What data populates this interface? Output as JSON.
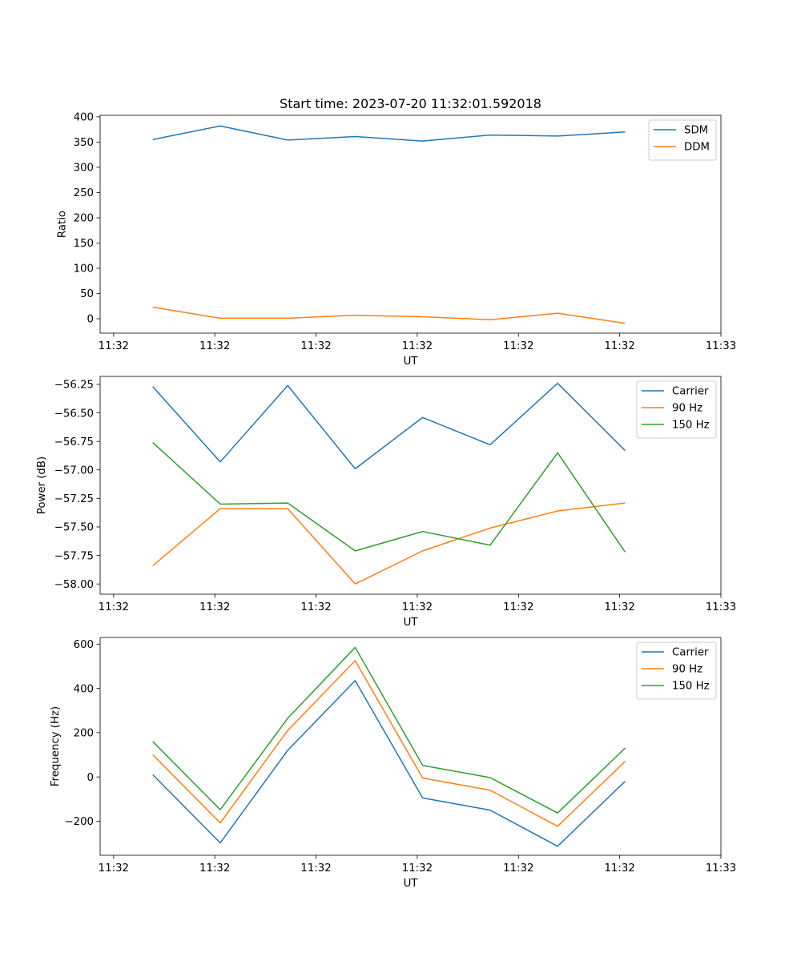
{
  "chart_data": [
    {
      "type": "line",
      "title": "Start time: 2023-07-20 11:32:01.592018",
      "xlabel": "UT",
      "ylabel": "Ratio",
      "x": [
        1,
        2,
        3,
        4,
        5,
        6,
        7,
        8
      ],
      "xlim": [
        0.22,
        9.42
      ],
      "xticks": [
        {
          "value": 0.42,
          "label": "11:32"
        },
        {
          "value": 1.92,
          "label": "11:32"
        },
        {
          "value": 3.42,
          "label": "11:32"
        },
        {
          "value": 4.92,
          "label": "11:32"
        },
        {
          "value": 6.42,
          "label": "11:32"
        },
        {
          "value": 7.92,
          "label": "11:32"
        },
        {
          "value": 9.42,
          "label": "11:33"
        }
      ],
      "ylim": [
        -28.5,
        403
      ],
      "yticks": [
        {
          "value": 0,
          "label": "0"
        },
        {
          "value": 50,
          "label": "50"
        },
        {
          "value": 100,
          "label": "100"
        },
        {
          "value": 150,
          "label": "150"
        },
        {
          "value": 200,
          "label": "200"
        },
        {
          "value": 250,
          "label": "250"
        },
        {
          "value": 300,
          "label": "300"
        },
        {
          "value": 350,
          "label": "350"
        },
        {
          "value": 400,
          "label": "400"
        }
      ],
      "legend_position": "top-right",
      "series": [
        {
          "name": "SDM",
          "color": "#1f77b4",
          "values": [
            355,
            382,
            354,
            361,
            352,
            364,
            362,
            370
          ]
        },
        {
          "name": "DDM",
          "color": "#ff7f0e",
          "values": [
            23,
            1,
            1,
            7,
            4,
            -2,
            11,
            -9
          ]
        }
      ]
    },
    {
      "type": "line",
      "title": "",
      "xlabel": "UT",
      "ylabel": "Power (dB)",
      "x": [
        1,
        2,
        3,
        4,
        5,
        6,
        7,
        8
      ],
      "xlim": [
        0.22,
        9.42
      ],
      "xticks": [
        {
          "value": 0.42,
          "label": "11:32"
        },
        {
          "value": 1.92,
          "label": "11:32"
        },
        {
          "value": 3.42,
          "label": "11:32"
        },
        {
          "value": 4.92,
          "label": "11:32"
        },
        {
          "value": 6.42,
          "label": "11:32"
        },
        {
          "value": 7.92,
          "label": "11:32"
        },
        {
          "value": 9.42,
          "label": "11:33"
        }
      ],
      "ylim": [
        -58.09,
        -56.18
      ],
      "yticks": [
        {
          "value": -58.0,
          "label": "−58.00"
        },
        {
          "value": -57.75,
          "label": "−57.75"
        },
        {
          "value": -57.5,
          "label": "−57.50"
        },
        {
          "value": -57.25,
          "label": "−57.25"
        },
        {
          "value": -57.0,
          "label": "−57.00"
        },
        {
          "value": -56.75,
          "label": "−56.75"
        },
        {
          "value": -56.5,
          "label": "−56.50"
        },
        {
          "value": -56.25,
          "label": "−56.25"
        }
      ],
      "legend_position": "top-right",
      "series": [
        {
          "name": "Carrier",
          "color": "#1f77b4",
          "values": [
            -56.27,
            -56.93,
            -56.26,
            -56.99,
            -56.54,
            -56.78,
            -56.24,
            -56.83
          ]
        },
        {
          "name": "90 Hz",
          "color": "#ff7f0e",
          "values": [
            -57.84,
            -57.34,
            -57.34,
            -58.0,
            -57.71,
            -57.51,
            -57.36,
            -57.29
          ]
        },
        {
          "name": "150 Hz",
          "color": "#2ca02c",
          "values": [
            -56.76,
            -57.3,
            -57.29,
            -57.71,
            -57.54,
            -57.66,
            -56.85,
            -57.72
          ]
        }
      ]
    },
    {
      "type": "line",
      "title": "",
      "xlabel": "UT",
      "ylabel": "Frequency (Hz)",
      "x": [
        1,
        2,
        3,
        4,
        5,
        6,
        7,
        8
      ],
      "xlim": [
        0.22,
        9.42
      ],
      "xticks": [
        {
          "value": 0.42,
          "label": "11:32"
        },
        {
          "value": 1.92,
          "label": "11:32"
        },
        {
          "value": 3.42,
          "label": "11:32"
        },
        {
          "value": 4.92,
          "label": "11:32"
        },
        {
          "value": 6.42,
          "label": "11:32"
        },
        {
          "value": 7.92,
          "label": "11:32"
        },
        {
          "value": 9.42,
          "label": "11:33"
        }
      ],
      "ylim": [
        -354,
        630
      ],
      "yticks": [
        {
          "value": -200,
          "label": "−200"
        },
        {
          "value": 0,
          "label": "0"
        },
        {
          "value": 200,
          "label": "200"
        },
        {
          "value": 400,
          "label": "400"
        },
        {
          "value": 600,
          "label": "600"
        }
      ],
      "legend_position": "top-right",
      "series": [
        {
          "name": "Carrier",
          "color": "#1f77b4",
          "values": [
            10,
            -298,
            120,
            435,
            -95,
            -150,
            -313,
            -20
          ]
        },
        {
          "name": "90 Hz",
          "color": "#ff7f0e",
          "values": [
            100,
            -208,
            210,
            525,
            -5,
            -60,
            -223,
            70
          ]
        },
        {
          "name": "150 Hz",
          "color": "#2ca02c",
          "values": [
            160,
            -148,
            265,
            585,
            52,
            -3,
            -163,
            130
          ]
        }
      ]
    }
  ]
}
